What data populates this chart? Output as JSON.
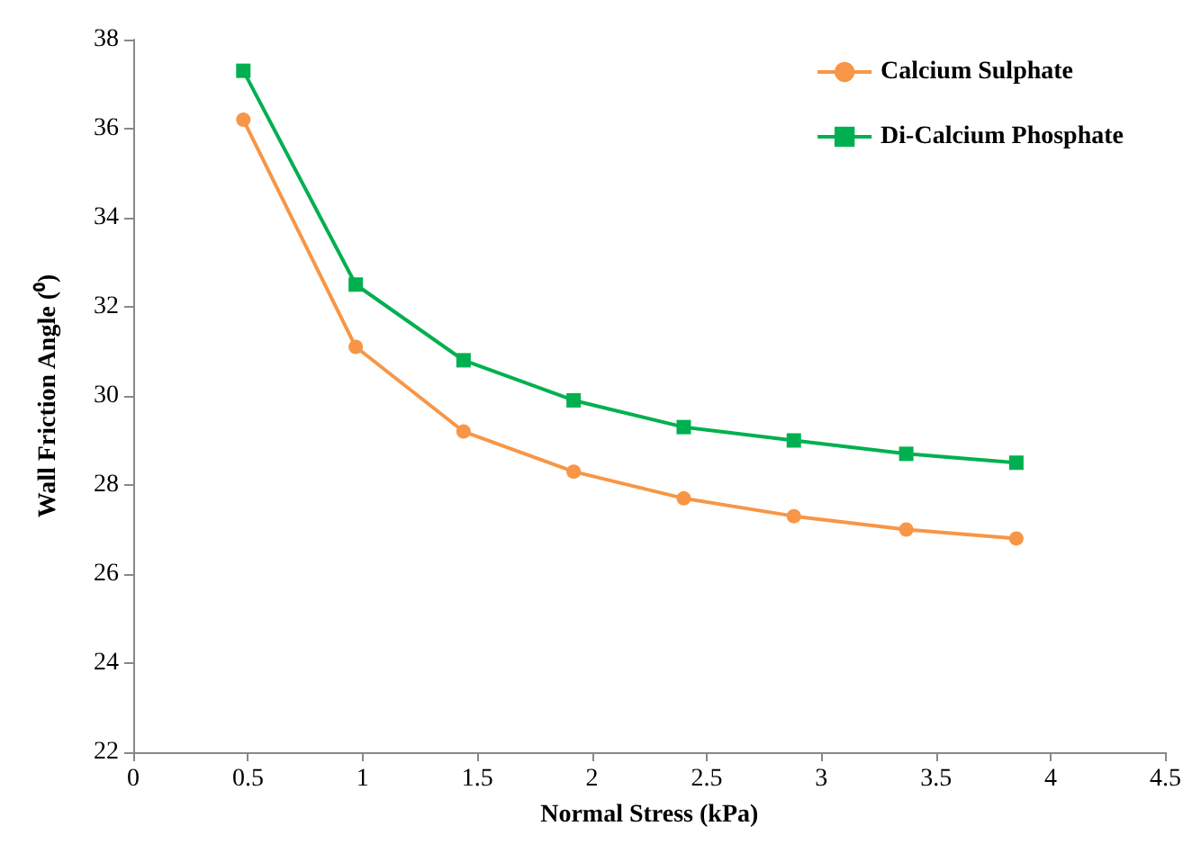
{
  "chart_data": {
    "type": "line",
    "xlabel": "Normal Stress (kPa)",
    "ylabel": "Wall Friction Angle (⁰)",
    "x": [
      0.48,
      0.97,
      1.44,
      1.92,
      2.4,
      2.88,
      3.37,
      3.85
    ],
    "series": [
      {
        "name": "Calcium Sulphate",
        "color": "#f79646",
        "marker": "circle",
        "values": [
          36.2,
          31.1,
          29.2,
          28.3,
          27.7,
          27.3,
          27.0,
          26.8
        ]
      },
      {
        "name": "Di-Calcium Phosphate",
        "color": "#00b050",
        "marker": "square",
        "values": [
          37.3,
          32.5,
          30.8,
          29.9,
          29.3,
          29.0,
          28.7,
          28.5
        ]
      }
    ],
    "xlim": [
      0,
      4.5
    ],
    "xticks": [
      0,
      0.5,
      1,
      1.5,
      2,
      2.5,
      3,
      3.5,
      4,
      4.5
    ],
    "ylim": [
      22,
      38
    ],
    "yticks": [
      22,
      24,
      26,
      28,
      30,
      32,
      34,
      36,
      38
    ],
    "grid": false,
    "legend": "top right",
    "line_style": "solid"
  }
}
